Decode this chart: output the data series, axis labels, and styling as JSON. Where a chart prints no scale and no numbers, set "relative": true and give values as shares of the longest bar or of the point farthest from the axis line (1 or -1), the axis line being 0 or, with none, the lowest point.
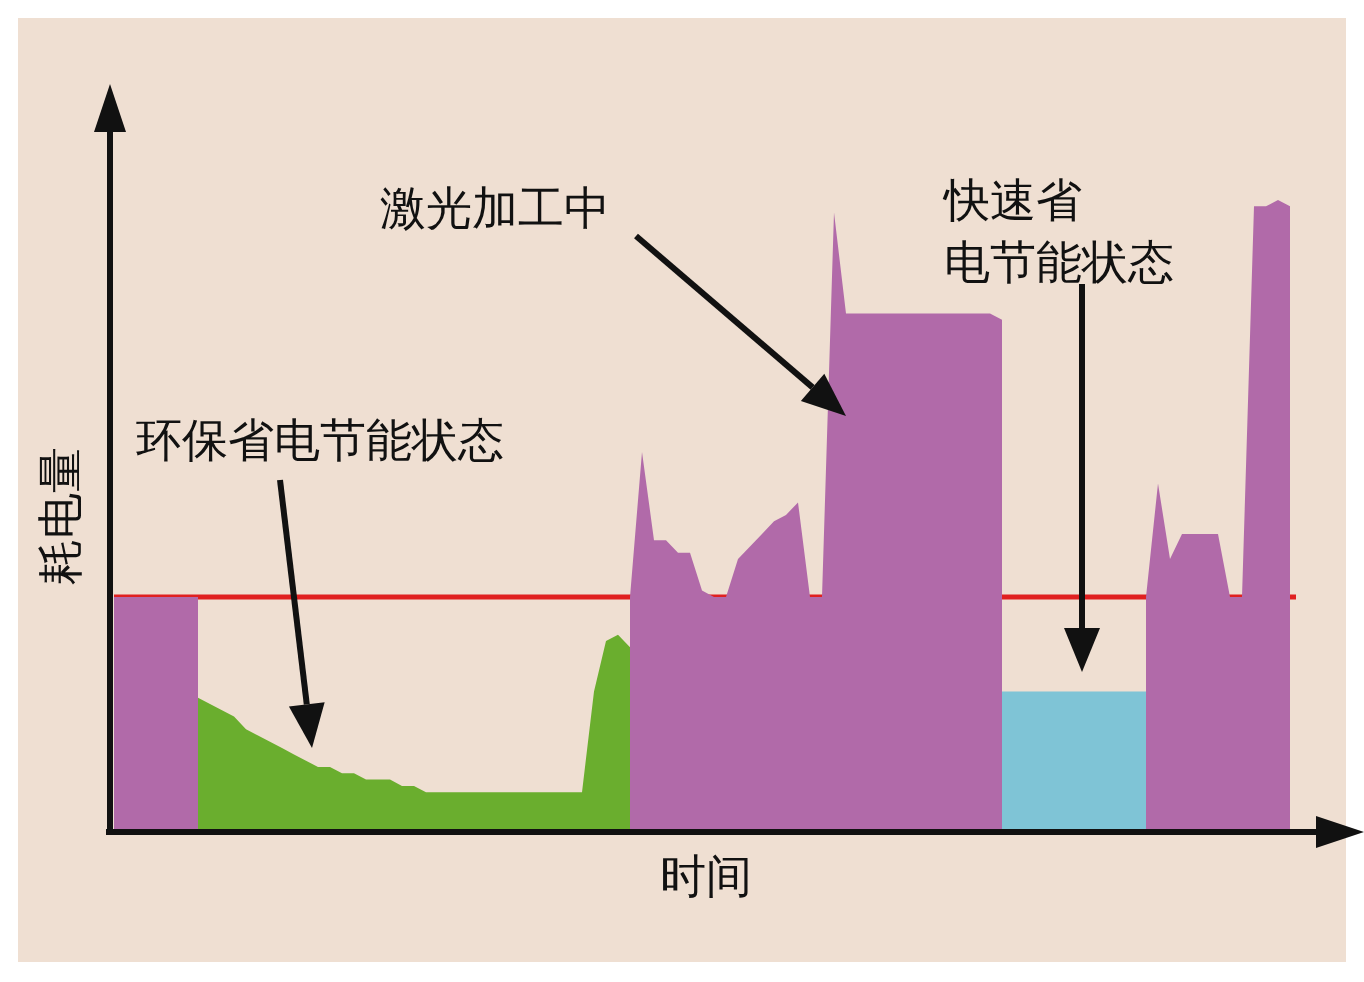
{
  "chart_data": {
    "type": "area",
    "relative": true,
    "xlabel": "时间",
    "ylabel": "耗电量",
    "categories": [
      null,
      null,
      null,
      null,
      null,
      null,
      null,
      null,
      null,
      null,
      null,
      null,
      null,
      null,
      null,
      null,
      null,
      null,
      null,
      null,
      null,
      null,
      null,
      null,
      null,
      null,
      null,
      null,
      null,
      null,
      null,
      null,
      null,
      null,
      null,
      null,
      null,
      null,
      null,
      null,
      null,
      null,
      null,
      null,
      null,
      null,
      null,
      null,
      null,
      null,
      null,
      null,
      null,
      null,
      null,
      null,
      null,
      null,
      null,
      null,
      null,
      null,
      null,
      null,
      null,
      null,
      null,
      null,
      null,
      null,
      null,
      null,
      null,
      null,
      null,
      null,
      null,
      null,
      null,
      null,
      null,
      null,
      null,
      null,
      null,
      null,
      null,
      null,
      null,
      null,
      null,
      null,
      null,
      null,
      null,
      null,
      null,
      null,
      null
    ],
    "series": [
      {
        "color": "#b16aa9",
        "values": [
          0.37,
          0.37,
          0.37,
          0.37,
          0.37,
          0.37,
          0.37,
          0.37,
          null,
          null,
          null,
          null,
          null,
          null,
          null,
          null,
          null,
          null,
          null,
          null,
          null,
          null,
          null,
          null,
          null,
          null,
          null,
          null,
          null,
          null,
          null,
          null,
          null,
          null,
          null,
          null,
          null,
          null,
          null,
          null,
          null,
          null,
          null,
          0.37,
          0.6,
          0.46,
          0.46,
          0.44,
          0.44,
          0.38,
          0.37,
          0.37,
          0.43,
          0.45,
          0.47,
          0.49,
          0.5,
          0.52,
          0.37,
          0.37,
          0.98,
          0.82,
          0.82,
          0.82,
          0.82,
          0.82,
          0.82,
          0.82,
          0.82,
          0.82,
          0.82,
          0.82,
          0.82,
          0.82,
          0.81,
          null,
          null,
          null,
          null,
          null,
          null,
          null,
          null,
          null,
          null,
          null,
          0.37,
          0.55,
          0.43,
          0.47,
          0.47,
          0.47,
          0.47,
          0.37,
          0.37,
          0.99,
          0.99,
          1,
          0.99
        ]
      },
      {
        "color": "#6aae2e",
        "values": [
          null,
          null,
          null,
          null,
          null,
          null,
          null,
          0.21,
          0.2,
          0.19,
          0.18,
          0.16,
          0.15,
          0.14,
          0.13,
          0.12,
          0.11,
          0.1,
          0.1,
          0.09,
          0.09,
          0.08,
          0.08,
          0.08,
          0.07,
          0.07,
          0.06,
          0.06,
          0.06,
          0.06,
          0.06,
          0.06,
          0.06,
          0.06,
          0.06,
          0.06,
          0.06,
          0.06,
          0.06,
          0.06,
          0.22,
          0.3,
          0.31,
          0.29,
          null,
          null,
          null,
          null,
          null,
          null,
          null,
          null,
          null,
          null,
          null,
          null,
          null,
          null,
          null,
          null,
          null,
          null,
          null,
          null,
          null,
          null,
          null,
          null,
          null,
          null,
          null,
          null,
          null,
          null,
          null,
          null,
          null,
          null,
          null,
          null,
          null,
          null,
          null,
          null,
          null,
          null,
          null,
          null,
          null,
          null,
          null,
          null,
          null,
          null,
          null,
          null,
          null,
          null,
          null
        ]
      },
      {
        "color": "#7fc4d6",
        "values": [
          null,
          null,
          null,
          null,
          null,
          null,
          null,
          null,
          null,
          null,
          null,
          null,
          null,
          null,
          null,
          null,
          null,
          null,
          null,
          null,
          null,
          null,
          null,
          null,
          null,
          null,
          null,
          null,
          null,
          null,
          null,
          null,
          null,
          null,
          null,
          null,
          null,
          null,
          null,
          null,
          null,
          null,
          null,
          null,
          null,
          null,
          null,
          null,
          null,
          null,
          null,
          null,
          null,
          null,
          null,
          null,
          null,
          null,
          null,
          null,
          null,
          null,
          null,
          null,
          null,
          null,
          null,
          null,
          null,
          null,
          null,
          null,
          null,
          null,
          0.22,
          0.22,
          0.22,
          0.22,
          0.22,
          0.22,
          0.22,
          0.22,
          0.22,
          0.22,
          0.22,
          0.22,
          0.22,
          null,
          null,
          null,
          null,
          null,
          null,
          null,
          null,
          null,
          null,
          null,
          null
        ]
      }
    ],
    "ref_lines": [
      {
        "axis": "y",
        "value": 0.37,
        "color": "#e02020"
      }
    ],
    "annotations": [
      "环保省电节能状态",
      "激光加工中",
      "快速省电节能状态"
    ]
  }
}
